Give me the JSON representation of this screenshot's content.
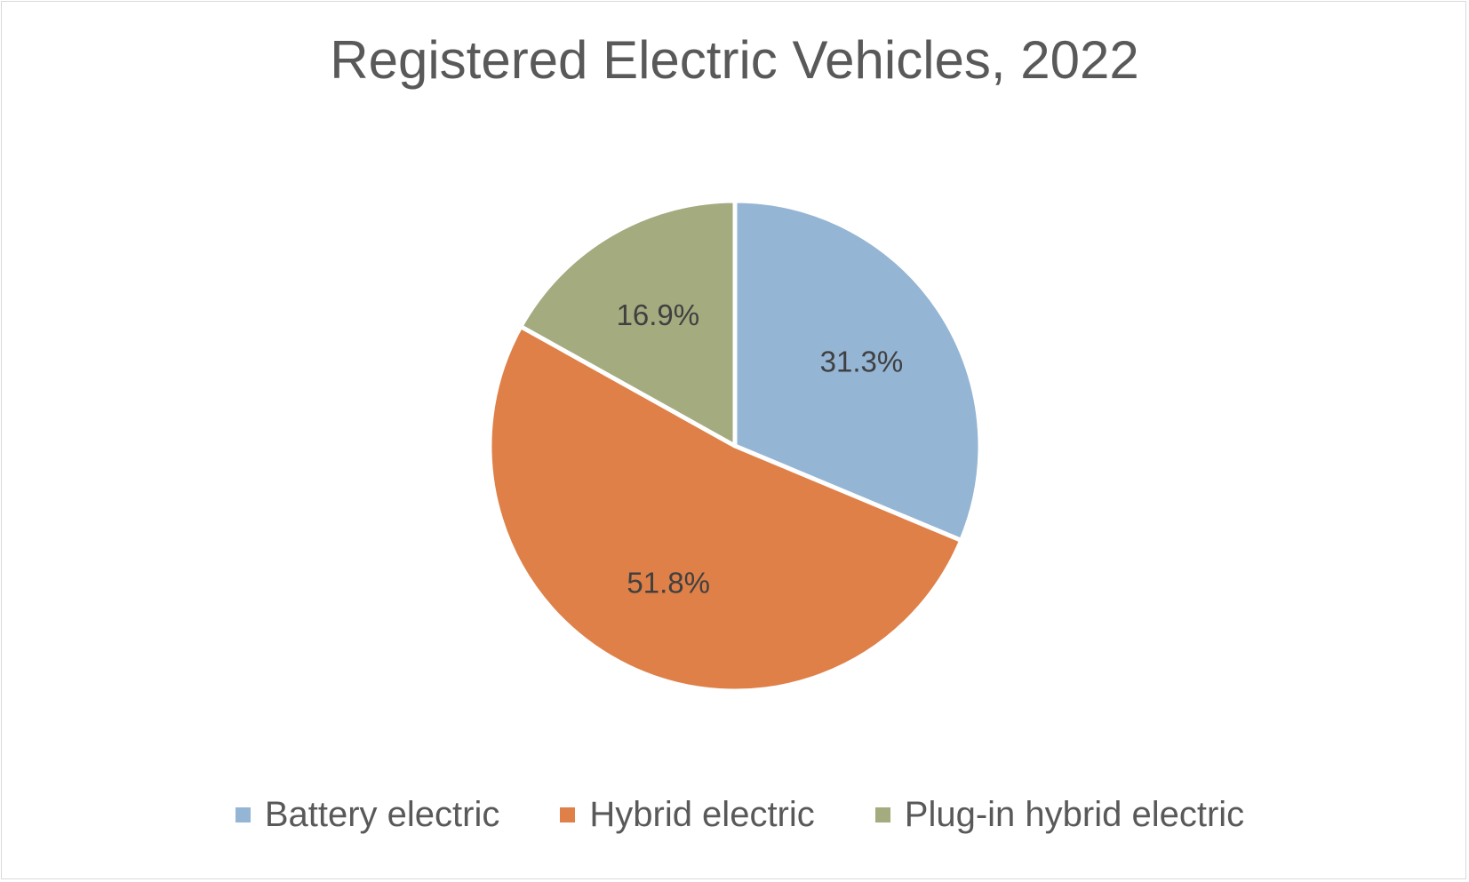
{
  "chart_data": {
    "type": "pie",
    "title": "Registered Electric Vehicles, 2022",
    "categories": [
      "Battery electric",
      "Hybrid electric",
      "Plug-in hybrid electric"
    ],
    "values": [
      31.3,
      51.8,
      16.9
    ],
    "data_labels": [
      "31.3%",
      "51.8%",
      "16.9%"
    ],
    "colors": [
      "#95B5D4",
      "#DE8048",
      "#A3AB7F"
    ],
    "legend_position": "bottom",
    "start_angle": "12 o'clock, clockwise"
  }
}
